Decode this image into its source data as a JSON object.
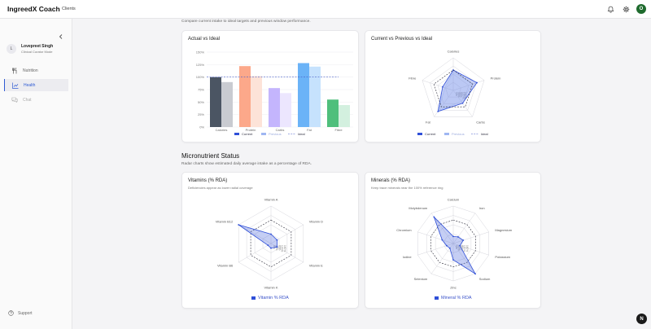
{
  "app": {
    "title": "IngreedX Coach",
    "nav_clients": "Clients"
  },
  "header_icons": [
    "bell-icon",
    "gear-icon"
  ],
  "user_avatar_letter": "O",
  "fab_letter": "N",
  "sidebar": {
    "user": {
      "initial": "L",
      "name": "Lovepreet Singh",
      "role": "Clinical Curator Mode"
    },
    "items": [
      {
        "label": "Nutrition",
        "icon": "utensils-icon",
        "state": "normal"
      },
      {
        "label": "Health",
        "icon": "chart-icon",
        "state": "active"
      },
      {
        "label": "Chat",
        "icon": "chat-icon",
        "state": "disabled"
      }
    ],
    "support": "Support"
  },
  "macros": {
    "intro": "Compare current intake to ideal targets and previous window performance."
  },
  "micros": {
    "title": "Micronutrient Status",
    "intro": "Radar charts show estimated daily average intake as a percentage of RDA."
  },
  "colors": {
    "current": "#2f4fd8",
    "accent": "#2f5bd3"
  },
  "chart_data": [
    {
      "type": "bar",
      "title": "Actual vs Ideal",
      "categories": [
        "Calories",
        "Protein",
        "Carbs",
        "Fat",
        "Fibre"
      ],
      "yticks": [
        "0%",
        "25%",
        "50%",
        "75%",
        "100%",
        "125%",
        "150%"
      ],
      "ylim": [
        0,
        150
      ],
      "series": [
        {
          "name": "Current",
          "values": [
            100,
            122,
            78,
            128,
            55
          ]
        },
        {
          "name": "Previous",
          "values": [
            90,
            102,
            68,
            121,
            44
          ]
        }
      ],
      "ideal_line": 100,
      "bar_colors": {
        "current": [
          "#4b5563",
          "#fca88a",
          "#c4b5fd",
          "#6bb3f7",
          "#4fbf7c"
        ],
        "previous": [
          "#c9cbd1",
          "#fde3d8",
          "#ece6fe",
          "#c6e2fd",
          "#d3f0df"
        ]
      },
      "legend": [
        "Current",
        "Previous",
        "Ideal"
      ]
    },
    {
      "type": "radar",
      "title": "Current vs Previous vs Ideal",
      "axes": [
        "Calories",
        "Protein",
        "Carbs",
        "Fat",
        "Fibre"
      ],
      "ring_labels": [
        "0%",
        "40%",
        "80%",
        "120%",
        "160%"
      ],
      "rmax": 160,
      "series": [
        {
          "name": "Current",
          "values": [
            100,
            122,
            78,
            128,
            55
          ]
        },
        {
          "name": "Previous",
          "values": [
            90,
            102,
            68,
            121,
            44
          ]
        },
        {
          "name": "Ideal",
          "values": [
            100,
            100,
            100,
            100,
            100
          ]
        }
      ],
      "legend": [
        "Current",
        "Previous",
        "Ideal"
      ]
    },
    {
      "type": "radar",
      "title": "Vitamins (% RDA)",
      "subtitle": "Deficiencies appear as lower radial coverage",
      "axes": [
        "Vitamin A",
        "Vitamin D",
        "Vitamin E",
        "Vitamin K",
        "Vitamin B6",
        "Vitamin B12"
      ],
      "ring_labels": [
        "0%",
        "40%",
        "80%",
        "120%",
        "160%"
      ],
      "rmax": 160,
      "series": [
        {
          "name": "Vitamin % RDA",
          "values": [
            40,
            30,
            30,
            20,
            15,
            165
          ]
        }
      ],
      "reference": 100,
      "legend": [
        "Vitamin % RDA"
      ]
    },
    {
      "type": "radar",
      "title": "Minerals (% RDA)",
      "subtitle": "Keep trace minerals near the 100% reference ring",
      "axes": [
        "Calcium",
        "Iron",
        "Magnesium",
        "Potassium",
        "Sodium",
        "Zinc",
        "Selenium",
        "Iodine",
        "Chromium",
        "Molybdenum"
      ],
      "ring_labels": [
        "0%",
        "40%",
        "80%",
        "120%",
        "160%"
      ],
      "rmax": 160,
      "series": [
        {
          "name": "Mineral % RDA",
          "values": [
            30,
            35,
            45,
            30,
            165,
            70,
            25,
            30,
            50,
            140
          ]
        }
      ],
      "reference": 100,
      "legend": [
        "Mineral % RDA"
      ]
    }
  ]
}
